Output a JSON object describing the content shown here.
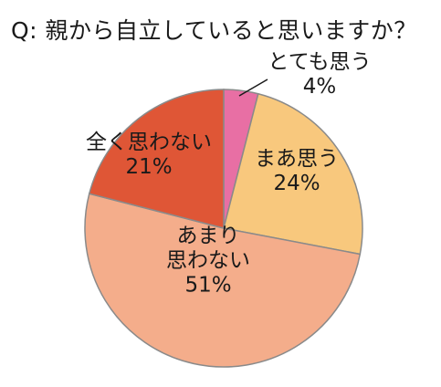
{
  "chart_data": {
    "type": "pie",
    "title": "Q: 親から自立していると思いますか？",
    "start_angle_deg": 0,
    "direction": "clockwise",
    "slices": [
      {
        "label_lines": [
          "とても思う"
        ],
        "value": 4,
        "value_label": "4%",
        "color": "#e86fa4"
      },
      {
        "label_lines": [
          "まあ思う"
        ],
        "value": 24,
        "value_label": "24%",
        "color": "#f8c87d"
      },
      {
        "label_lines": [
          "あまり",
          "思わない"
        ],
        "value": 51,
        "value_label": "51%",
        "color": "#f4ad8b"
      },
      {
        "label_lines": [
          "全く思わない"
        ],
        "value": 21,
        "value_label": "21%",
        "color": "#df5636"
      }
    ],
    "stroke_color": "#8a8a8a"
  }
}
